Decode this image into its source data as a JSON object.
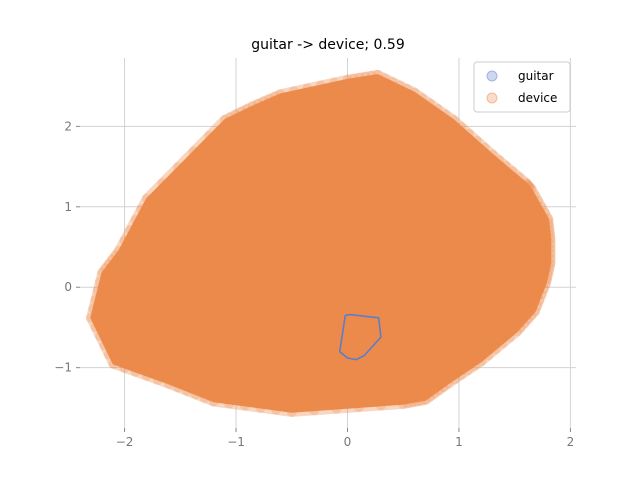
{
  "chart_data": {
    "type": "scatter",
    "title": "guitar -> device; 0.59",
    "xlabel": "",
    "ylabel": "",
    "xlim": [
      -2.4,
      2.05
    ],
    "ylim": [
      -1.75,
      2.85
    ],
    "xticks": [
      -2,
      -1,
      0,
      1,
      2
    ],
    "xtick_labels": [
      "−2",
      "−1",
      "0",
      "1",
      "2"
    ],
    "yticks": [
      -1,
      0,
      1,
      2
    ],
    "ytick_labels": [
      "−1",
      "0",
      "1",
      "2"
    ],
    "grid": true,
    "legend_position": "top-right",
    "series": [
      {
        "name": "guitar",
        "color": "#5a7ec9",
        "hull": [
          [
            -0.02,
            -0.35
          ],
          [
            0.02,
            -0.34
          ],
          [
            0.28,
            -0.38
          ],
          [
            0.3,
            -0.62
          ],
          [
            0.15,
            -0.85
          ],
          [
            0.08,
            -0.9
          ],
          [
            0.0,
            -0.88
          ],
          [
            -0.07,
            -0.8
          ]
        ]
      },
      {
        "name": "device",
        "color": "#ec8a4b",
        "hull": [
          [
            0.27,
            2.64
          ],
          [
            0.6,
            2.42
          ],
          [
            0.95,
            2.08
          ],
          [
            1.3,
            1.65
          ],
          [
            1.6,
            1.3
          ],
          [
            1.65,
            1.22
          ],
          [
            1.8,
            0.85
          ],
          [
            1.82,
            0.6
          ],
          [
            1.82,
            0.3
          ],
          [
            1.78,
            0.05
          ],
          [
            1.68,
            -0.3
          ],
          [
            1.52,
            -0.55
          ],
          [
            1.2,
            -0.92
          ],
          [
            0.9,
            -1.2
          ],
          [
            0.7,
            -1.4
          ],
          [
            0.5,
            -1.45
          ],
          [
            -0.5,
            -1.55
          ],
          [
            -1.2,
            -1.42
          ],
          [
            -1.6,
            -1.2
          ],
          [
            -2.1,
            -0.95
          ],
          [
            -2.3,
            -0.38
          ],
          [
            -2.2,
            0.18
          ],
          [
            -2.05,
            0.45
          ],
          [
            -1.8,
            1.1
          ],
          [
            -1.1,
            2.08
          ],
          [
            -0.85,
            2.25
          ],
          [
            -0.6,
            2.4
          ],
          [
            0.0,
            2.58
          ]
        ]
      }
    ]
  }
}
